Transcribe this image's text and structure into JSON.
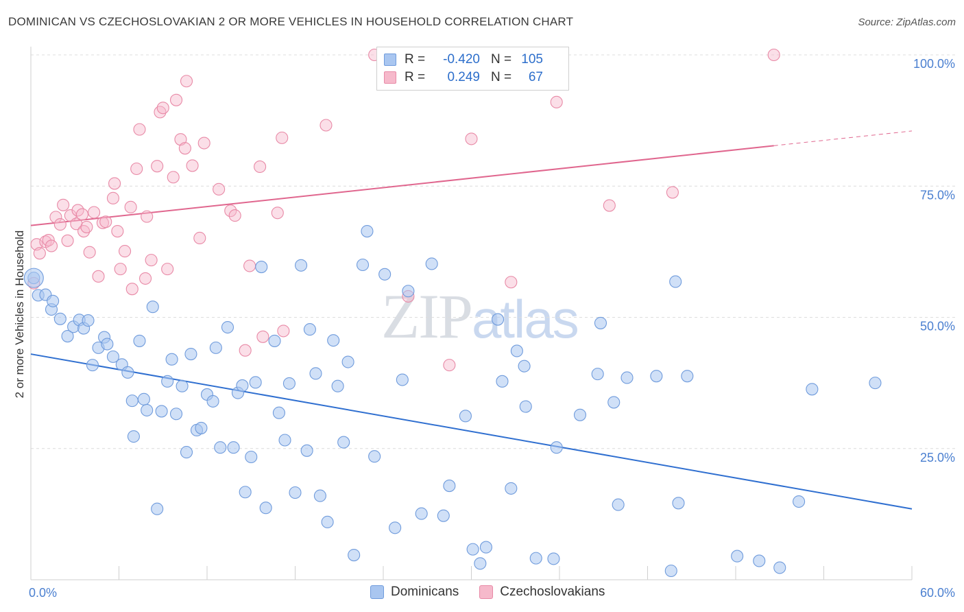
{
  "title": "DOMINICAN VS CZECHOSLOVAKIAN 2 OR MORE VEHICLES IN HOUSEHOLD CORRELATION CHART",
  "source": "Source: ZipAtlas.com",
  "watermark": {
    "part1": "ZIP",
    "part2": "atlas"
  },
  "legend": {
    "rows": [
      {
        "r_label": "R =",
        "r_value": "-0.420",
        "n_label": "N =",
        "n_value": "105",
        "color": "#a9c6f0",
        "border": "#6f9bdc"
      },
      {
        "r_label": "R =",
        "r_value": "0.249",
        "n_label": "N =",
        "n_value": "67",
        "color": "#f6b9cb",
        "border": "#e889a6"
      }
    ]
  },
  "bottom_legend": [
    {
      "name": "Dominicans",
      "color": "#a9c6f0",
      "border": "#6f9bdc"
    },
    {
      "name": "Czechoslovakians",
      "color": "#f6b9cb",
      "border": "#e889a6"
    }
  ],
  "chart_data": {
    "type": "scatter",
    "xlabel": "",
    "ylabel": "2 or more Vehicles in Household",
    "xlim": [
      0,
      60
    ],
    "ylim": [
      0,
      100
    ],
    "x_tick_labels": [
      {
        "value": 0,
        "label": "0.0%"
      },
      {
        "value": 60,
        "label": "60.0%"
      }
    ],
    "y_tick_labels": [
      {
        "value": 25,
        "label": "25.0%"
      },
      {
        "value": 50,
        "label": "50.0%"
      },
      {
        "value": 75,
        "label": "75.0%"
      },
      {
        "value": 100,
        "label": "100.0%"
      }
    ],
    "grid": "horizontal dashed",
    "colors": {
      "dominicans": "#a9c6f0",
      "dominicans_line": "#2f6fd0",
      "czech": "#f6b9cb",
      "czech_line": "#e0668e"
    },
    "series": [
      {
        "name": "Dominicans",
        "trend": {
          "x0": 0,
          "y0": 43.0,
          "x1": 60,
          "y1": 13.5
        },
        "points": [
          [
            0.2,
            57.5
          ],
          [
            0.5,
            54.2
          ],
          [
            1.0,
            54.3
          ],
          [
            1.4,
            51.5
          ],
          [
            1.5,
            53.1
          ],
          [
            2.0,
            49.7
          ],
          [
            2.5,
            46.4
          ],
          [
            2.9,
            48.2
          ],
          [
            3.3,
            49.5
          ],
          [
            3.6,
            47.9
          ],
          [
            3.9,
            49.4
          ],
          [
            4.2,
            40.9
          ],
          [
            4.6,
            44.2
          ],
          [
            5.0,
            46.2
          ],
          [
            5.2,
            44.9
          ],
          [
            5.6,
            42.5
          ],
          [
            6.2,
            41.0
          ],
          [
            6.6,
            39.5
          ],
          [
            6.9,
            34.1
          ],
          [
            7.0,
            27.3
          ],
          [
            7.4,
            45.5
          ],
          [
            7.7,
            34.4
          ],
          [
            7.9,
            32.3
          ],
          [
            8.3,
            52.0
          ],
          [
            8.6,
            13.5
          ],
          [
            8.9,
            32.1
          ],
          [
            9.3,
            37.8
          ],
          [
            9.6,
            42.0
          ],
          [
            9.9,
            31.6
          ],
          [
            10.3,
            36.9
          ],
          [
            10.6,
            24.3
          ],
          [
            10.9,
            43.0
          ],
          [
            11.3,
            28.5
          ],
          [
            11.6,
            28.9
          ],
          [
            12.0,
            35.3
          ],
          [
            12.4,
            34.0
          ],
          [
            12.6,
            44.2
          ],
          [
            12.9,
            25.2
          ],
          [
            13.4,
            48.1
          ],
          [
            13.8,
            25.2
          ],
          [
            14.1,
            35.6
          ],
          [
            14.4,
            37.0
          ],
          [
            14.6,
            16.7
          ],
          [
            15.0,
            23.4
          ],
          [
            15.3,
            37.6
          ],
          [
            15.7,
            59.6
          ],
          [
            16.0,
            13.7
          ],
          [
            16.6,
            45.5
          ],
          [
            16.9,
            31.8
          ],
          [
            17.3,
            26.6
          ],
          [
            17.6,
            37.4
          ],
          [
            18.0,
            16.6
          ],
          [
            18.4,
            59.9
          ],
          [
            18.8,
            24.6
          ],
          [
            19.0,
            47.7
          ],
          [
            19.4,
            39.3
          ],
          [
            19.7,
            16.0
          ],
          [
            20.2,
            11.0
          ],
          [
            20.6,
            45.6
          ],
          [
            20.9,
            36.9
          ],
          [
            21.3,
            26.2
          ],
          [
            21.6,
            41.5
          ],
          [
            22.0,
            4.7
          ],
          [
            22.6,
            60.0
          ],
          [
            22.9,
            66.4
          ],
          [
            23.4,
            23.5
          ],
          [
            24.1,
            58.2
          ],
          [
            24.8,
            9.9
          ],
          [
            25.3,
            38.1
          ],
          [
            25.7,
            55.0
          ],
          [
            26.6,
            12.6
          ],
          [
            27.3,
            60.2
          ],
          [
            28.1,
            12.2
          ],
          [
            28.5,
            17.9
          ],
          [
            29.6,
            31.2
          ],
          [
            30.1,
            5.8
          ],
          [
            30.6,
            3.1
          ],
          [
            31.0,
            6.2
          ],
          [
            31.8,
            49.6
          ],
          [
            32.1,
            37.8
          ],
          [
            32.7,
            17.4
          ],
          [
            33.1,
            43.6
          ],
          [
            33.6,
            40.7
          ],
          [
            33.7,
            33.0
          ],
          [
            34.4,
            4.1
          ],
          [
            35.6,
            4.0
          ],
          [
            35.8,
            25.2
          ],
          [
            37.4,
            31.4
          ],
          [
            38.6,
            39.2
          ],
          [
            38.8,
            48.9
          ],
          [
            39.7,
            33.8
          ],
          [
            40.0,
            14.3
          ],
          [
            40.6,
            38.5
          ],
          [
            42.6,
            38.8
          ],
          [
            43.6,
            1.7
          ],
          [
            43.9,
            56.8
          ],
          [
            44.1,
            14.6
          ],
          [
            44.7,
            38.8
          ],
          [
            48.1,
            4.5
          ],
          [
            49.6,
            3.6
          ],
          [
            51.0,
            2.3
          ],
          [
            52.3,
            14.9
          ],
          [
            53.2,
            36.3
          ],
          [
            57.5,
            37.5
          ]
        ]
      },
      {
        "name": "Czechoslovakians",
        "trend": {
          "x0": 0,
          "y0": 67.5,
          "x1": 50.6,
          "y1": 82.7,
          "dash_to_x": 60,
          "dash_to_y": 85.5
        },
        "points": [
          [
            0.2,
            56.5
          ],
          [
            0.4,
            63.9
          ],
          [
            0.6,
            62.2
          ],
          [
            1.0,
            64.4
          ],
          [
            1.2,
            64.7
          ],
          [
            1.4,
            63.6
          ],
          [
            1.7,
            69.1
          ],
          [
            2.0,
            67.7
          ],
          [
            2.2,
            71.4
          ],
          [
            2.5,
            64.6
          ],
          [
            2.7,
            69.4
          ],
          [
            3.1,
            67.8
          ],
          [
            3.2,
            70.4
          ],
          [
            3.5,
            69.6
          ],
          [
            3.6,
            66.4
          ],
          [
            3.8,
            67.2
          ],
          [
            4.0,
            62.4
          ],
          [
            4.3,
            70.0
          ],
          [
            4.6,
            57.8
          ],
          [
            4.9,
            68.0
          ],
          [
            5.1,
            68.2
          ],
          [
            5.6,
            72.7
          ],
          [
            5.7,
            75.5
          ],
          [
            5.9,
            66.4
          ],
          [
            6.1,
            59.2
          ],
          [
            6.4,
            62.6
          ],
          [
            6.8,
            71.0
          ],
          [
            6.9,
            55.4
          ],
          [
            7.2,
            78.3
          ],
          [
            7.4,
            85.8
          ],
          [
            7.8,
            57.4
          ],
          [
            7.9,
            69.2
          ],
          [
            8.2,
            60.9
          ],
          [
            8.6,
            78.8
          ],
          [
            8.8,
            89.1
          ],
          [
            9.0,
            89.9
          ],
          [
            9.3,
            59.2
          ],
          [
            9.7,
            76.7
          ],
          [
            9.9,
            91.4
          ],
          [
            10.2,
            83.9
          ],
          [
            10.5,
            82.2
          ],
          [
            10.6,
            95.0
          ],
          [
            11.0,
            78.9
          ],
          [
            11.5,
            65.1
          ],
          [
            11.8,
            83.2
          ],
          [
            12.8,
            74.4
          ],
          [
            13.6,
            70.3
          ],
          [
            13.9,
            69.4
          ],
          [
            14.6,
            43.7
          ],
          [
            14.9,
            59.8
          ],
          [
            15.6,
            78.7
          ],
          [
            15.8,
            46.3
          ],
          [
            16.8,
            69.9
          ],
          [
            17.1,
            84.2
          ],
          [
            17.2,
            47.4
          ],
          [
            20.1,
            86.6
          ],
          [
            23.4,
            100.0
          ],
          [
            25.7,
            54.0
          ],
          [
            28.5,
            40.9
          ],
          [
            30.0,
            84.0
          ],
          [
            32.7,
            56.7
          ],
          [
            35.8,
            91.0
          ],
          [
            39.4,
            71.3
          ],
          [
            43.7,
            73.8
          ],
          [
            50.6,
            100.0
          ]
        ]
      }
    ]
  }
}
